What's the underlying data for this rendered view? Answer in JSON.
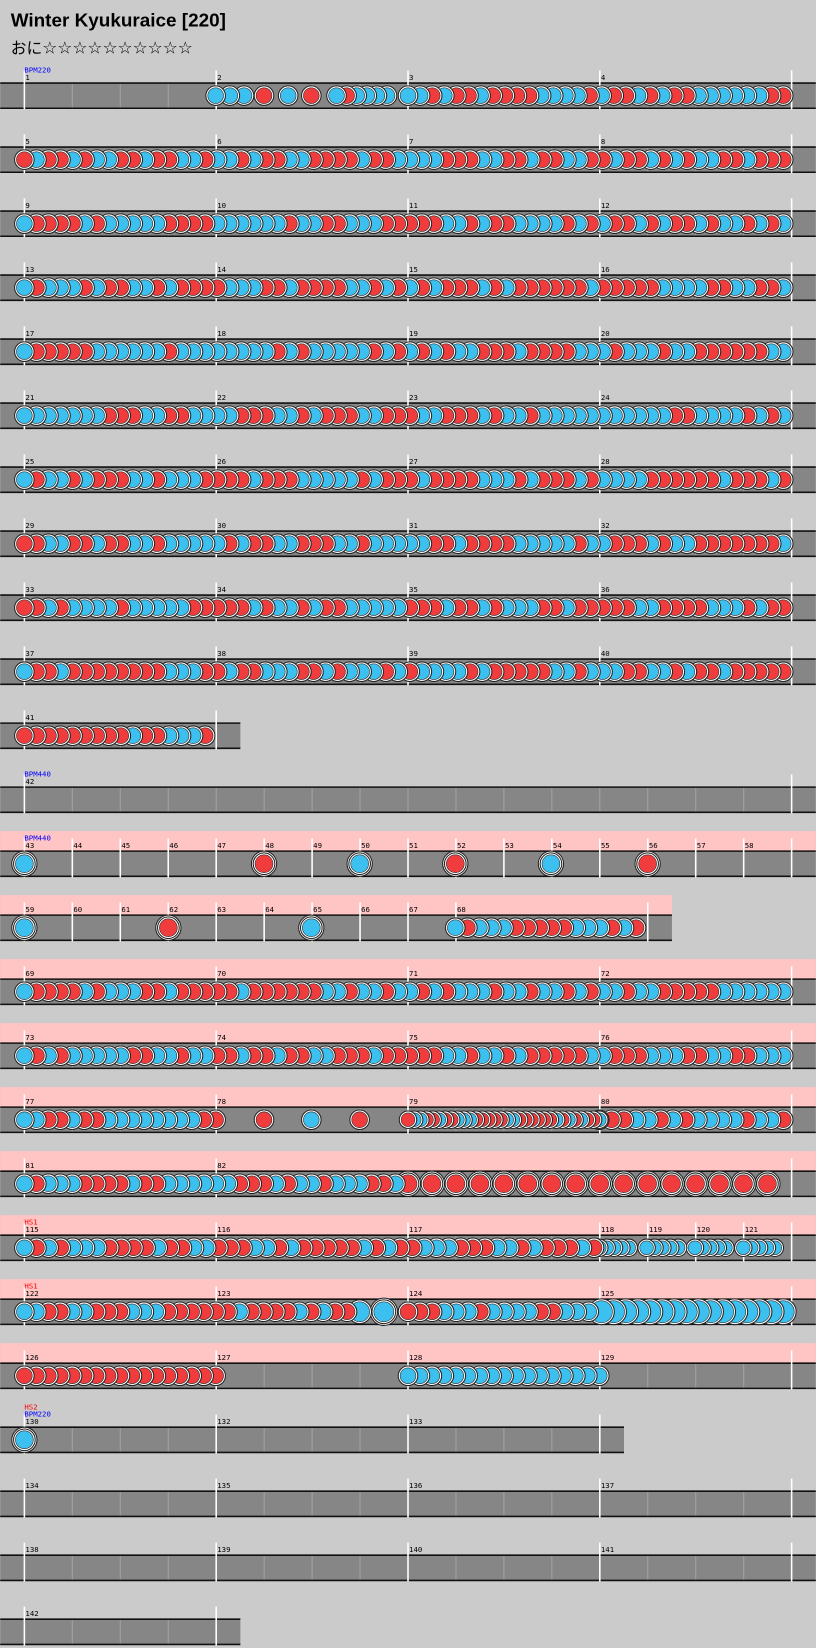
{
  "header": {
    "title": "Winter Kyukuraice [220]",
    "course": "おに",
    "stars": "☆☆☆☆☆☆☆☆☆☆"
  },
  "rows": [
    {
      "measures": [
        "1",
        "2",
        "3",
        "4"
      ],
      "labels": [
        {
          "text": "BPM220",
          "color": "#0000ff"
        }
      ]
    },
    {
      "measures": [
        "5",
        "6",
        "7",
        "8"
      ]
    },
    {
      "measures": [
        "9",
        "10",
        "11",
        "12"
      ]
    },
    {
      "measures": [
        "13",
        "14",
        "15",
        "16"
      ]
    },
    {
      "measures": [
        "17",
        "18",
        "19",
        "20"
      ]
    },
    {
      "measures": [
        "21",
        "22",
        "23",
        "24"
      ]
    },
    {
      "measures": [
        "25",
        "26",
        "27",
        "28"
      ]
    },
    {
      "measures": [
        "29",
        "30",
        "31",
        "32"
      ]
    },
    {
      "measures": [
        "33",
        "34",
        "35",
        "36"
      ]
    },
    {
      "measures": [
        "37",
        "38",
        "39",
        "40"
      ]
    },
    {
      "measures": [
        "41"
      ]
    },
    {
      "measures": [
        "42"
      ],
      "labels": [
        {
          "text": "BPM440",
          "color": "#0000ff"
        }
      ]
    },
    {
      "measures": [
        "43",
        "44",
        "45",
        "46",
        "47",
        "48",
        "49",
        "50",
        "51",
        "52",
        "53",
        "54",
        "55",
        "56",
        "57",
        "58"
      ],
      "labels": [
        {
          "text": "BPM440",
          "color": "#0000ff"
        }
      ]
    },
    {
      "measures": [
        "59",
        "60",
        "61",
        "62",
        "63",
        "64",
        "65",
        "66",
        "67",
        "68"
      ]
    },
    {
      "measures": [
        "69",
        "70",
        "71",
        "72"
      ]
    },
    {
      "measures": [
        "73",
        "74",
        "75",
        "76"
      ]
    },
    {
      "measures": [
        "77",
        "78",
        "79",
        "80"
      ]
    },
    {
      "measures": [
        "81",
        "82"
      ]
    },
    {
      "measures": [
        "115",
        "116",
        "117",
        "118",
        "119",
        "120",
        "121"
      ],
      "labels": [
        {
          "text": "HS1",
          "color": "#ff0000"
        }
      ]
    },
    {
      "measures": [
        "122",
        "123",
        "124",
        "125"
      ],
      "labels": [
        {
          "text": "HS1",
          "color": "#ff0000"
        }
      ]
    },
    {
      "measures": [
        "126",
        "127",
        "128",
        "129"
      ]
    },
    {
      "measures": [
        "130",
        "132",
        "133"
      ],
      "labels": [
        {
          "text": "BPM220",
          "color": "#0000ff"
        },
        {
          "text": "HS2",
          "color": "#ff0000"
        }
      ]
    },
    {
      "measures": [
        "134",
        "135",
        "136",
        "137"
      ]
    },
    {
      "measures": [
        "138",
        "139",
        "140",
        "141"
      ]
    },
    {
      "measures": [
        "142"
      ]
    }
  ]
}
